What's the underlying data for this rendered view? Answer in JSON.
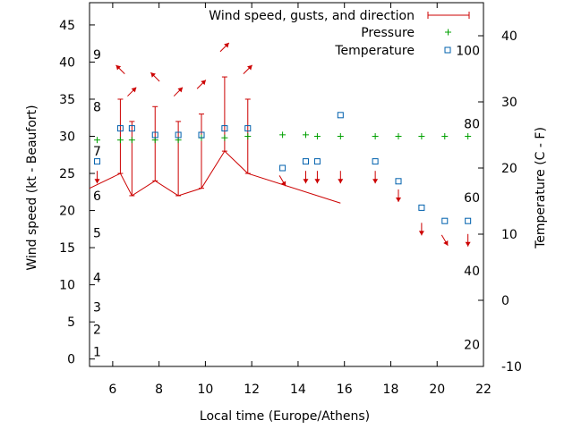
{
  "chart_data": {
    "type": "line",
    "xlabel": "Local time (Europe/Athens)",
    "ylabel": "Wind speed (kt - Beaufort)",
    "y2label": "Temperature (C - F)",
    "xlim": [
      5,
      22
    ],
    "ylim": [
      -1,
      48
    ],
    "y2lim": [
      -10,
      45
    ],
    "x_ticks": [
      6,
      8,
      10,
      12,
      14,
      16,
      18,
      20,
      22
    ],
    "y_ticks": [
      0,
      5,
      10,
      15,
      20,
      25,
      30,
      35,
      40,
      45
    ],
    "y2_ticks": [
      -10,
      0,
      10,
      20,
      30,
      40
    ],
    "beaufort_labels": [
      {
        "label": "1",
        "kt": 1
      },
      {
        "label": "2",
        "kt": 4
      },
      {
        "label": "3",
        "kt": 7
      },
      {
        "label": "4",
        "kt": 11
      },
      {
        "label": "5",
        "kt": 17
      },
      {
        "label": "6",
        "kt": 22
      },
      {
        "label": "7",
        "kt": 28
      },
      {
        "label": "8",
        "kt": 34
      },
      {
        "label": "9",
        "kt": 41
      }
    ],
    "fahrenheit_labels": [
      {
        "label": "20",
        "f": 20
      },
      {
        "label": "40",
        "f": 40
      },
      {
        "label": "60",
        "f": 60
      },
      {
        "label": "80",
        "f": 80
      },
      {
        "label": "100",
        "f": 100
      }
    ],
    "legend": {
      "position": "top-right",
      "entries": [
        "Wind speed, gusts, and direction",
        "Pressure",
        "Temperature"
      ]
    },
    "series": [
      {
        "name": "Wind speed, gusts, and direction",
        "color": "#cc0000",
        "points": [
          {
            "x": 5.0,
            "y": 23,
            "gust": null
          },
          {
            "x": 6.33,
            "y": 25,
            "gust": 35
          },
          {
            "x": 6.83,
            "y": 22,
            "gust": 32
          },
          {
            "x": 7.83,
            "y": 24,
            "gust": 34
          },
          {
            "x": 8.83,
            "y": 22,
            "gust": 32
          },
          {
            "x": 9.83,
            "y": 23,
            "gust": 33
          },
          {
            "x": 10.83,
            "y": 28,
            "gust": 38
          },
          {
            "x": 11.83,
            "y": 25,
            "gust": 35
          },
          {
            "x": 15.83,
            "y": 21,
            "gust": null
          }
        ]
      },
      {
        "name": "Wind direction",
        "color": "#cc0000",
        "arrows": [
          {
            "x": 5.33,
            "y": 24.5,
            "dir": "s"
          },
          {
            "x": 6.33,
            "y": 39,
            "dir": "nw"
          },
          {
            "x": 6.83,
            "y": 36,
            "dir": "ne"
          },
          {
            "x": 7.83,
            "y": 38,
            "dir": "nw"
          },
          {
            "x": 8.83,
            "y": 36,
            "dir": "ne"
          },
          {
            "x": 9.83,
            "y": 37,
            "dir": "ne"
          },
          {
            "x": 10.83,
            "y": 42,
            "dir": "ne"
          },
          {
            "x": 11.83,
            "y": 39,
            "dir": "ne"
          },
          {
            "x": 13.33,
            "y": 24,
            "dir": "se"
          },
          {
            "x": 14.33,
            "y": 24.5,
            "dir": "s"
          },
          {
            "x": 14.83,
            "y": 24.5,
            "dir": "s"
          },
          {
            "x": 15.83,
            "y": 24.5,
            "dir": "s"
          },
          {
            "x": 17.33,
            "y": 24.5,
            "dir": "s"
          },
          {
            "x": 18.33,
            "y": 22,
            "dir": "s"
          },
          {
            "x": 19.33,
            "y": 17.5,
            "dir": "s"
          },
          {
            "x": 20.33,
            "y": 16,
            "dir": "se"
          },
          {
            "x": 21.33,
            "y": 16,
            "dir": "s"
          }
        ]
      },
      {
        "name": "Pressure",
        "color": "#00a000",
        "points": [
          {
            "x": 5.33,
            "y": 29.5
          },
          {
            "x": 6.33,
            "y": 29.5
          },
          {
            "x": 6.83,
            "y": 29.5
          },
          {
            "x": 7.83,
            "y": 29.5
          },
          {
            "x": 8.83,
            "y": 29.5
          },
          {
            "x": 9.83,
            "y": 29.8
          },
          {
            "x": 10.83,
            "y": 29.8
          },
          {
            "x": 11.83,
            "y": 30
          },
          {
            "x": 13.33,
            "y": 30.2
          },
          {
            "x": 14.33,
            "y": 30.2
          },
          {
            "x": 14.83,
            "y": 30
          },
          {
            "x": 15.83,
            "y": 30
          },
          {
            "x": 17.33,
            "y": 30
          },
          {
            "x": 18.33,
            "y": 30
          },
          {
            "x": 19.33,
            "y": 30
          },
          {
            "x": 20.33,
            "y": 30
          },
          {
            "x": 21.33,
            "y": 30
          }
        ]
      },
      {
        "name": "Temperature",
        "color": "#0060ad",
        "axis": "y2",
        "points": [
          {
            "x": 5.33,
            "y": 21
          },
          {
            "x": 6.33,
            "y": 26
          },
          {
            "x": 6.83,
            "y": 26
          },
          {
            "x": 7.83,
            "y": 25
          },
          {
            "x": 8.83,
            "y": 25
          },
          {
            "x": 9.83,
            "y": 25
          },
          {
            "x": 10.83,
            "y": 26
          },
          {
            "x": 11.83,
            "y": 26
          },
          {
            "x": 13.33,
            "y": 20
          },
          {
            "x": 14.33,
            "y": 21
          },
          {
            "x": 14.83,
            "y": 21
          },
          {
            "x": 15.83,
            "y": 28
          },
          {
            "x": 17.33,
            "y": 21
          },
          {
            "x": 18.33,
            "y": 18
          },
          {
            "x": 19.33,
            "y": 14
          },
          {
            "x": 20.33,
            "y": 12
          },
          {
            "x": 21.33,
            "y": 12
          }
        ]
      }
    ]
  }
}
